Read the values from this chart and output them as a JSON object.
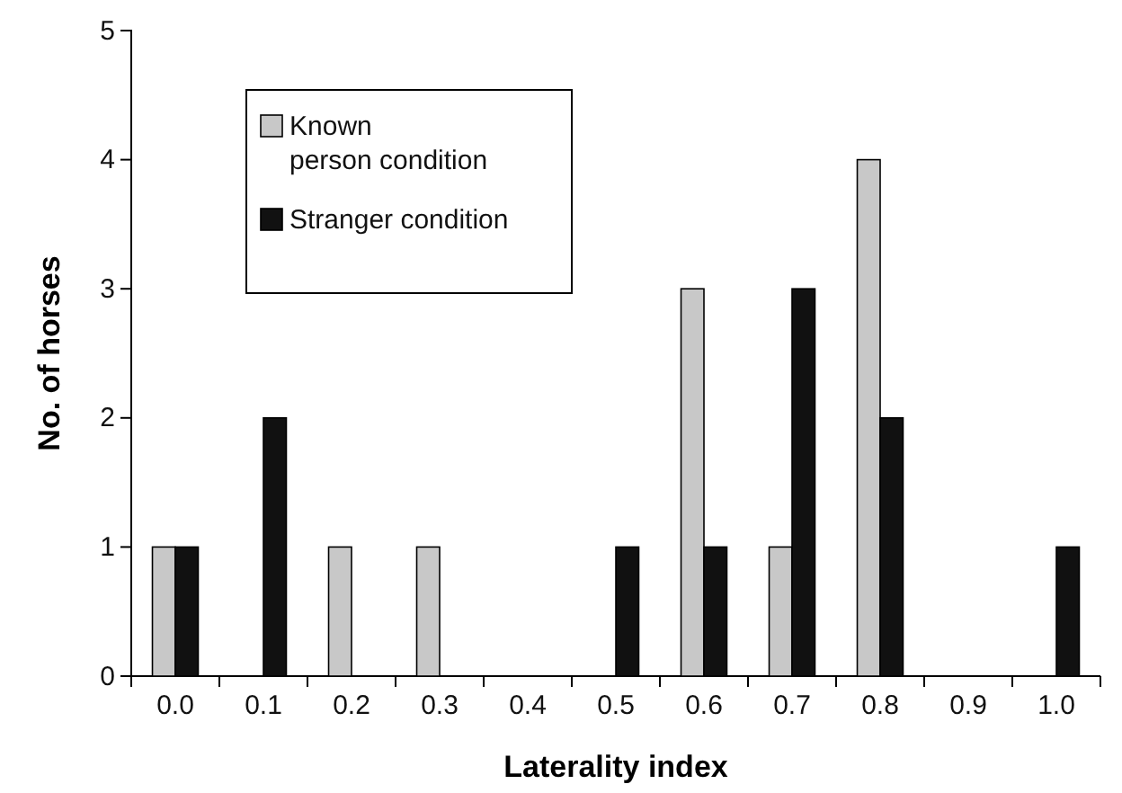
{
  "chart_data": {
    "type": "bar",
    "xlabel": "Laterality index",
    "ylabel": "No. of horses",
    "categories": [
      "0.0",
      "0.1",
      "0.2",
      "0.3",
      "0.4",
      "0.5",
      "0.6",
      "0.7",
      "0.8",
      "0.9",
      "1.0"
    ],
    "series": [
      {
        "name": "Known person condition",
        "color": "#c8c8c8",
        "values": [
          1,
          0,
          1,
          1,
          0,
          0,
          3,
          1,
          4,
          0,
          0
        ]
      },
      {
        "name": "Stranger condition",
        "color": "#111111",
        "values": [
          1,
          2,
          0,
          0,
          0,
          1,
          1,
          3,
          2,
          0,
          1
        ]
      }
    ],
    "ylim": [
      0,
      5
    ],
    "yticks": [
      0,
      1,
      2,
      3,
      4,
      5
    ],
    "grid": false,
    "legend": "top left"
  }
}
